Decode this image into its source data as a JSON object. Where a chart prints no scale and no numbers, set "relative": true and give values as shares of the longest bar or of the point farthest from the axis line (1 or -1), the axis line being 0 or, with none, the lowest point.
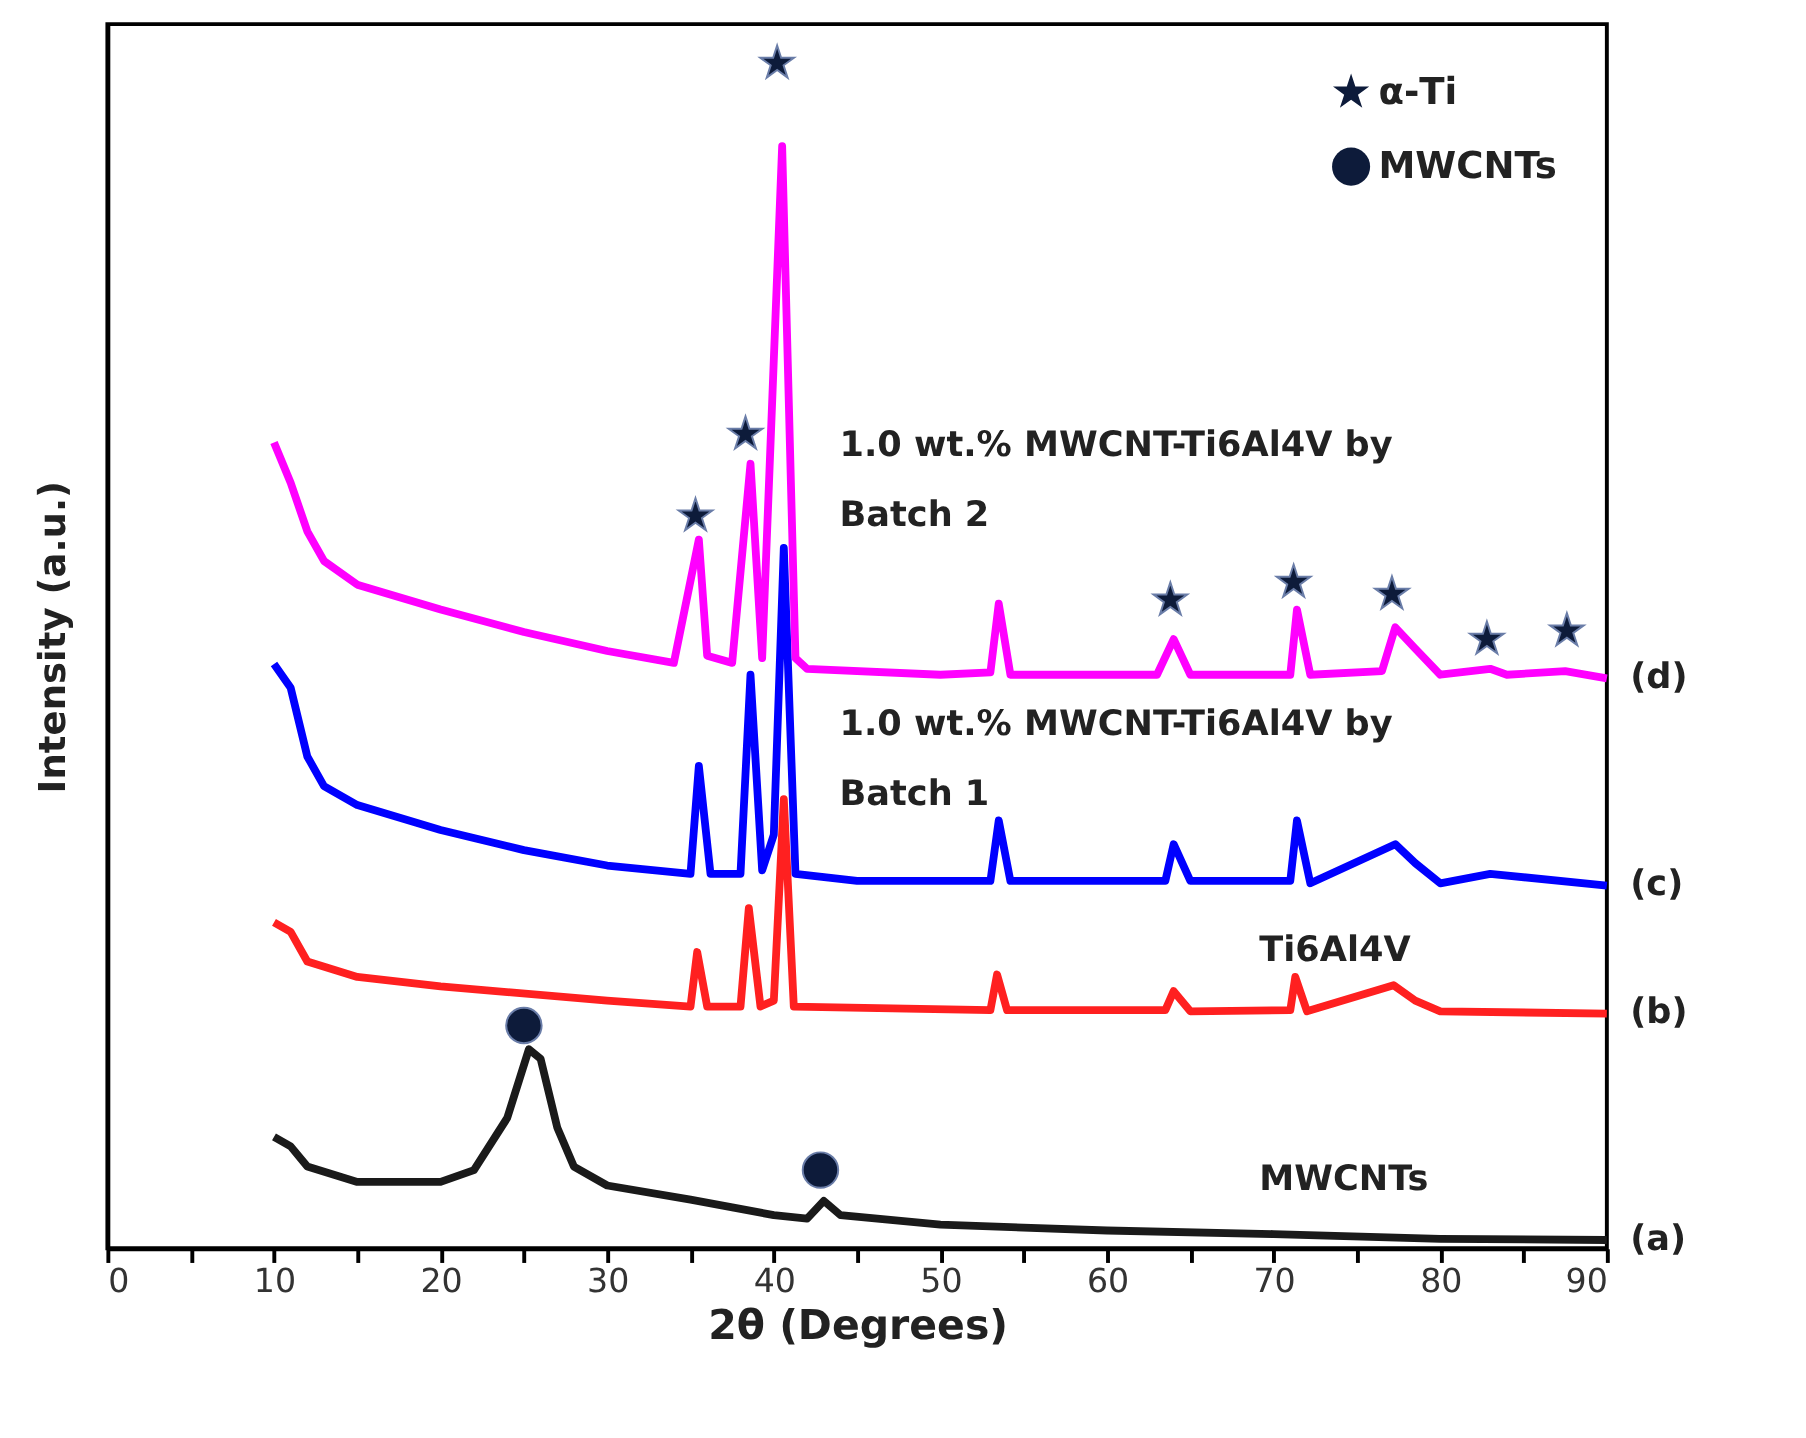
{
  "chart_data": {
    "type": "line",
    "relative": true,
    "xlabel": "2θ (Degrees)",
    "ylabel": "Intensity (a.u.)",
    "xlim": [
      0,
      90
    ],
    "xticks": [
      0,
      {
        "value": 5,
        "label": null
      },
      10,
      {
        "value": 15,
        "label": null
      },
      20,
      {
        "value": 25,
        "label": null
      },
      30,
      {
        "value": 35,
        "label": null
      },
      40,
      {
        "value": 45,
        "label": null
      },
      50,
      {
        "value": 55,
        "label": null
      },
      60,
      {
        "value": 65,
        "label": null
      },
      70,
      {
        "value": 75,
        "label": null
      },
      80,
      {
        "value": 85,
        "label": null
      },
      90
    ],
    "tick_labels": "x",
    "grid": false,
    "legend": "top right",
    "line_style": "solid",
    "series": [
      {
        "name": "MWCNTs",
        "color": "#1a1a1a",
        "x": [
          10,
          11,
          12,
          15,
          20,
          22,
          24,
          25.3,
          26,
          27,
          28,
          30,
          35,
          40,
          42,
          43,
          44,
          50,
          60,
          70,
          80,
          90
        ],
        "values": [
          0.094,
          0.086,
          0.069,
          0.056,
          0.056,
          0.066,
          0.11,
          0.168,
          0.16,
          0.102,
          0.069,
          0.053,
          0.041,
          0.028,
          0.025,
          0.04,
          0.028,
          0.02,
          0.015,
          0.012,
          0.008,
          0.007
        ]
      },
      {
        "name": "Ti6Al4V",
        "color": "#ff2020",
        "x": [
          10,
          11,
          12,
          15,
          20,
          30,
          35,
          35.4,
          36,
          38,
          38.5,
          39.2,
          40,
          40.6,
          41.2,
          53,
          53.4,
          54,
          63.5,
          64,
          65,
          71,
          71.3,
          72,
          77.2,
          78.5,
          80,
          90
        ],
        "values": [
          0.275,
          0.267,
          0.242,
          0.229,
          0.221,
          0.209,
          0.204,
          0.25,
          0.204,
          0.204,
          0.287,
          0.204,
          0.209,
          0.379,
          0.204,
          0.201,
          0.231,
          0.201,
          0.201,
          0.217,
          0.2,
          0.201,
          0.229,
          0.2,
          0.222,
          0.209,
          0.2,
          0.198
        ]
      },
      {
        "name": "1.0 wt.% MWCNT-Ti6Al4V by Batch 1",
        "color": "#0000ff",
        "x": [
          10,
          11,
          12,
          13,
          15,
          20,
          25,
          30,
          35,
          35.5,
          36.2,
          38,
          38.6,
          39.3,
          40,
          40.6,
          41.3,
          45,
          53,
          53.5,
          54.2,
          63.5,
          64,
          65,
          71,
          71.4,
          72.2,
          77.3,
          78.5,
          80,
          83,
          90
        ],
        "values": [
          0.493,
          0.473,
          0.415,
          0.39,
          0.374,
          0.353,
          0.336,
          0.323,
          0.316,
          0.407,
          0.316,
          0.316,
          0.484,
          0.319,
          0.349,
          0.591,
          0.316,
          0.31,
          0.31,
          0.361,
          0.31,
          0.31,
          0.341,
          0.31,
          0.31,
          0.361,
          0.308,
          0.341,
          0.325,
          0.308,
          0.316,
          0.306
        ]
      },
      {
        "name": "1.0 wt.% MWCNT-Ti6Al4V by Batch 2",
        "color": "#ff00ff",
        "x": [
          10,
          11,
          12,
          13,
          15,
          20,
          25,
          30,
          34,
          35.5,
          36,
          37.5,
          38.6,
          39.3,
          40.5,
          41.3,
          42,
          50,
          53,
          53.5,
          54.2,
          63,
          64,
          65,
          71,
          71.4,
          72.2,
          76.5,
          77.3,
          78.5,
          80,
          83,
          84,
          87.5,
          90
        ],
        "values": [
          0.68,
          0.646,
          0.605,
          0.58,
          0.56,
          0.539,
          0.52,
          0.504,
          0.494,
          0.598,
          0.5,
          0.494,
          0.662,
          0.498,
          0.93,
          0.498,
          0.489,
          0.484,
          0.486,
          0.544,
          0.484,
          0.484,
          0.514,
          0.484,
          0.484,
          0.539,
          0.484,
          0.487,
          0.524,
          0.506,
          0.484,
          0.489,
          0.484,
          0.487,
          0.481
        ]
      },
      {
        "name": "α-Ti",
        "type": "scatter",
        "marker": "star",
        "color": "#0d1b3a",
        "x": [
          35.3,
          38.3,
          40.2,
          63.8,
          71.2,
          77.1,
          82.8,
          87.6
        ],
        "values": [
          0.618,
          0.687,
          1.0,
          0.547,
          0.562,
          0.552,
          0.514,
          0.521
        ]
      },
      {
        "name": "MWCNTs",
        "type": "scatter",
        "marker": "circle",
        "color": "#0d1b3a",
        "x": [
          25,
          42.8
        ],
        "values": [
          0.188,
          0.066
        ]
      }
    ],
    "annotations": [
      "(a)",
      "(b)",
      "(c)",
      "(d)"
    ]
  }
}
